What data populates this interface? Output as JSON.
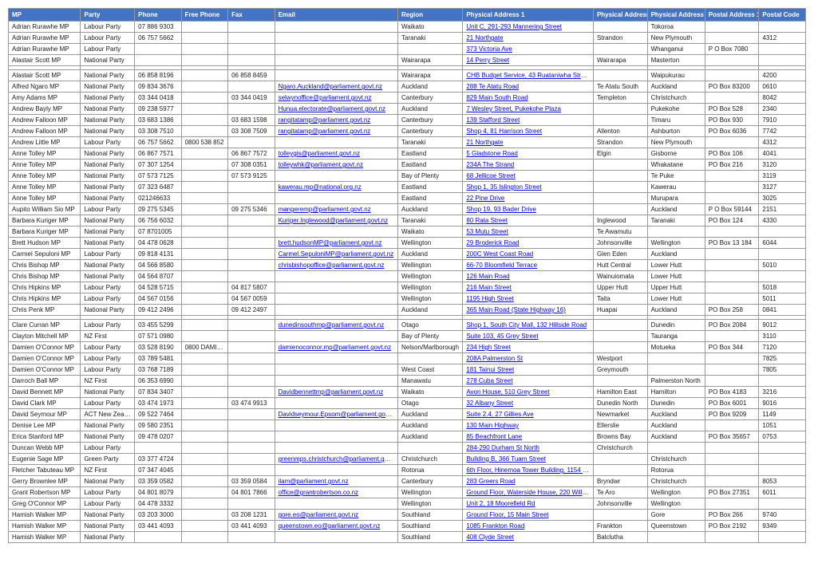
{
  "columns": [
    "MP",
    "Party",
    "Phone",
    "Free Phone",
    "Fax",
    "Email",
    "Region",
    "Physical Address 1",
    "Physical Address 2",
    "Physical Address 3",
    "Postal Address 1",
    "Postal Code"
  ],
  "colClasses": [
    "c0",
    "c1",
    "c2",
    "c3",
    "c4",
    "c5",
    "c6",
    "c7",
    "c8",
    "c9",
    "c10",
    "c11"
  ],
  "rows": [
    [
      "Adrian Rurawhe MP",
      "Labour Party",
      "07 886 9303",
      "",
      "",
      "",
      "Waikato",
      "Unit C, 291-293 Mannering Street",
      "",
      "Tokoroa",
      "",
      ""
    ],
    [
      "Adrian Rurawhe MP",
      "Labour Party",
      "06 757 5662",
      "",
      "",
      "",
      "Taranaki",
      "21 Northgate",
      "Strandon",
      "New Plymouth",
      "",
      "4312"
    ],
    [
      "Adrian Rurawhe MP",
      "Labour Party",
      "",
      "",
      "",
      "",
      "",
      "373 Victoria Ave",
      "",
      "Whanganui",
      "P O Box 7080",
      ""
    ],
    [
      "Alastair Scott MP",
      "National Party",
      "",
      "",
      "",
      "",
      "Wairarapa",
      "14 Perry Street",
      "Wairarapa",
      "Masterton",
      "",
      ""
    ],
    [
      "",
      "",
      "",
      "",
      "",
      "",
      "",
      "",
      "",
      "",
      "",
      ""
    ],
    [
      "Alastair Scott MP",
      "National Party",
      "06 858 8196",
      "",
      "06 858 8459",
      "",
      "Wairarapa",
      "CHB Budget Service, 43 Ruataniwha Street",
      "",
      "Waipukurau",
      "",
      "4200"
    ],
    [
      "Alfred Ngaro MP",
      "National Party",
      "09 834 3676",
      "",
      "",
      "Ngaro.Auckland@parliament.govt.nz",
      "Auckland",
      "288 Te Atatu Road",
      "Te Atatu South",
      "Auckland",
      "PO Box 83200",
      "0610"
    ],
    [
      "Amy Adams MP",
      "National Party",
      "03 344 0418",
      "",
      "03 344 0419",
      "selwynoffice@parliament.govt.nz",
      "Canterbury",
      "829 Main South Road",
      "Templeton",
      "Christchurch",
      "",
      "8042"
    ],
    [
      "Andrew Bayly MP",
      "National Party",
      "09 238 5977",
      "",
      "",
      "Hunua.electorate@parliament.govt.nz",
      "Auckland",
      "7 Wesley Street, Pukekohe Plaza",
      "",
      "Pukekohe",
      "PO Box 528",
      "2340"
    ],
    [
      "Andrew Falloon MP",
      "National Party",
      "03 683 1386",
      "",
      "03 683 1598",
      "rangitatamp@parliament.govt.nz",
      "Canterbury",
      "139 Stafford Street",
      "",
      "Timaru",
      "PO Box 930",
      "7910"
    ],
    [
      "Andrew Falloon MP",
      "National Party",
      "03 308 7510",
      "",
      "03 308 7509",
      "rangitatamp@parliament.govt.nz",
      "Canterbury",
      "Shop 4, 81 Harrison Street",
      "Allenton",
      "Ashburton",
      "PO Box 6036",
      "7742"
    ],
    [
      "Andrew Little MP",
      "Labour Party",
      "06 757 5662",
      "0800 538 852",
      "",
      "",
      "Taranaki",
      "21 Northgate",
      "Strandon",
      "New Plymouth",
      "",
      "4312"
    ],
    [
      "Anne Tolley MP",
      "National Party",
      "06 867 7571",
      "",
      "06 867 7572",
      "tolleygis@parliament.govt.nz",
      "Eastland",
      "5 Gladstone Road",
      "Elgin",
      "Gisborne",
      "PO Box 106",
      "4041"
    ],
    [
      "Anne Tolley MP",
      "National Party",
      "07 307 1254",
      "",
      "07 308 0351",
      "tolleywhk@parliament.govt.nz",
      "Eastland",
      "234A The Strand",
      "",
      "Whakatane",
      "PO Box 216",
      "3120"
    ],
    [
      "Anne Tolley MP",
      "National Party",
      "07 573 7125",
      "",
      "07 573 9125",
      "",
      "Bay of Plenty",
      "68 Jellicoe Street",
      "",
      "Te Puke",
      "",
      "3119"
    ],
    [
      "Anne Tolley MP",
      "National Party",
      "07 323 6487",
      "",
      "",
      "kawerau.mp@national.org.nz",
      "Eastland",
      "Shop 1, 35 Islington Street",
      "",
      "Kawerau",
      "",
      "3127"
    ],
    [
      "Anne Tolley MP",
      "National Party",
      "021246633",
      "",
      "",
      "",
      "Eastland",
      "22 Pine Drive",
      "",
      "Murupara",
      "",
      "3025"
    ],
    [
      "Aupito William Sio MP",
      "Labour Party",
      "09 275 5345",
      "",
      "09 275 5346",
      "mangeremp@parliament.govt.nz",
      "Auckland",
      "Shop 19, 93 Bader Drive",
      "",
      "Auckland",
      "P O Box 59144",
      "2151"
    ],
    [
      "Barbara Kuriger MP",
      "National Party",
      "06 756 6032",
      "",
      "",
      "Kuriger.Inglewood@parliament.govt.nz",
      "Taranaki",
      "80 Rata Street",
      "Inglewood",
      "Taranaki",
      "PO Box 124",
      "4330"
    ],
    [
      "Barbara Kuriger MP",
      "National Party",
      "07 8701005",
      "",
      "",
      "",
      "Waikato",
      "53 Mutu Street",
      "Te Awamutu",
      "",
      "",
      ""
    ],
    [
      "Brett Hudson MP",
      "National Party",
      "04 478 0628",
      "",
      "",
      "brett.hudsonMP@parliament.govt.nz",
      "Wellington",
      "29 Broderick Road",
      "Johnsonville",
      "Wellington",
      "PO Box 13 184",
      "6044"
    ],
    [
      "Carmel Sepuloni MP",
      "Labour Party",
      "09 818 4131",
      "",
      "",
      "Carmel.SepuloniMP@parliament.govt.nz",
      "Auckland",
      "200C West Coast Road",
      "Glen Eden",
      "Auckland",
      "",
      ""
    ],
    [
      "Chris Bishop MP",
      "National Party",
      "04 566 8580",
      "",
      "",
      "chrisbishopoffice@parliament.govt.nz",
      "Wellington",
      "66-70 Bloomfield Terrace",
      "Hutt Central",
      "Lower Hutt",
      "",
      "5010"
    ],
    [
      "Chris Bishop MP",
      "National Party",
      "04 564 8707",
      "",
      "",
      "",
      "Wellington",
      "126 Main Road",
      "Wainuiomata",
      "Lower Hutt",
      "",
      ""
    ],
    [
      "Chris Hipkins MP",
      "Labour Party",
      "04 528 5715",
      "",
      "04 817 5807",
      "",
      "Wellington",
      "216 Main Street",
      "Upper Hutt",
      "Upper Hutt",
      "",
      "5018"
    ],
    [
      "Chris Hipkins MP",
      "Labour Party",
      "04 567 0156",
      "",
      "04 567 0059",
      "",
      "Wellington",
      "1195 High Street",
      "Taita",
      "Lower Hutt",
      "",
      "5011"
    ],
    [
      "Chris Penk MP",
      "National Party",
      "09 412 2496",
      "",
      "09 412 2497",
      "",
      "Auckland",
      "365 Main Road (State Highway 16)",
      "Huapai",
      "Auckland",
      "PO Box 258",
      "0841"
    ],
    [
      "",
      "",
      "",
      "",
      "",
      "",
      "",
      "",
      "",
      "",
      "",
      ""
    ],
    [
      "Clare Curran MP",
      "Labour Party",
      "03 455 5299",
      "",
      "",
      "dunedinsouthmp@parliament.govt.nz",
      "Otago",
      "Shop 1, South City Mall, 132 Hillside Road",
      "",
      "Dunedin",
      "PO Box 2084",
      "9012"
    ],
    [
      "Clayton Mitchell MP",
      "NZ First",
      "07 571 0980",
      "",
      "",
      "",
      "Bay of Plenty",
      "Suite 103, 45 Grey Street",
      "",
      "Tauranga",
      "",
      "3110"
    ],
    [
      "Damien O'Connor MP",
      "Labour Party",
      "03 528 8190",
      "0800 DAMIEN",
      "",
      "damienoconnor.mp@parliament.govt.nz",
      "Nelson/Marlborough",
      "234 High Street",
      "",
      "Motueka",
      "PO Box 344",
      "7120"
    ],
    [
      "Damien O'Connor MP",
      "Labour Party",
      "03 789 5481",
      "",
      "",
      "",
      "",
      "208A Palmerston St",
      "Westport",
      "",
      "",
      "7825"
    ],
    [
      "Damien O'Connor MP",
      "Labour Party",
      "03 768 7189",
      "",
      "",
      "",
      "West Coast",
      "181 Tainui Street",
      "Greymouth",
      "",
      "",
      "7805"
    ],
    [
      "Darroch Ball MP",
      "NZ First",
      "06 353 6990",
      "",
      "",
      "",
      "Manawatu",
      "278 Cuba Street",
      "",
      "Palmerston North",
      "",
      ""
    ],
    [
      "David Bennett MP",
      "National Party",
      "07 834 3407",
      "",
      "",
      "Davidbennettmp@parliament.govt.nz",
      "Waikato",
      "Avon House, 510 Grey Street",
      "Hamilton East",
      "Hamilton",
      "PO Box 4183",
      "3216"
    ],
    [
      "David Clark MP",
      "Labour Party",
      "03 474 1973",
      "",
      "03 474 9913",
      "",
      "Otago",
      "32 Albany Street",
      "Dunedin North",
      "Dunedin",
      "PO Box 6001",
      "9016"
    ],
    [
      "David Seymour MP",
      "ACT New Zealand",
      "09 522 7464",
      "",
      "",
      "Davidseymour.Epsom@parliament.govt.nz",
      "Auckland",
      "Suite 2.4, 27 Gillies Ave",
      "Newmarket",
      "Auckland",
      "PO Box 9209",
      "1149"
    ],
    [
      "Denise Lee MP",
      "National Party",
      "09 580 2351",
      "",
      "",
      "",
      "Auckland",
      "130 Main Highway",
      "Ellerslie",
      "Auckland",
      "",
      "1051"
    ],
    [
      "Erica Stanford MP",
      "National Party",
      "09 478 0207",
      "",
      "",
      "",
      "Auckland",
      "85 Beachfront Lane",
      "Browns Bay",
      "Auckland",
      "PO Box 35657",
      "0753"
    ],
    [
      "Duncan Webb MP",
      "Labour Party",
      "",
      "",
      "",
      "",
      "",
      "284-290 Durham St North",
      "Christchurch",
      "",
      "",
      ""
    ],
    [
      "Eugenie Sage MP",
      "Green Party",
      "03 377 4724",
      "",
      "",
      "greenmps.christchurch@parliament.govt.nz",
      "Christchurch",
      "Building B, 366 Tuam Street",
      "",
      "Christchurch",
      "",
      ""
    ],
    [
      "Fletcher Tabuteau MP",
      "NZ First",
      "07 347 4045",
      "",
      "",
      "",
      "Rotorua",
      "6th Floor, Hinemoa Tower Building, 1154 Hinemoa St",
      "",
      "Rotorua",
      "",
      ""
    ],
    [
      "Gerry Brownlee MP",
      "National Party",
      "03 359 0582",
      "",
      "03 359 0584",
      "ilam@parliament.govt.nz",
      "Canterbury",
      "283 Greers Road",
      "Bryndwr",
      "Christchurch",
      "",
      "8053"
    ],
    [
      "Grant Robertson MP",
      "Labour Party",
      "04 801 8079",
      "",
      "04 801 7866",
      "office@grantrobertson.co.nz",
      "Wellington",
      "Ground Floor, Waterside House, 220 Willis Street",
      "Te Aro",
      "Wellington",
      "PO Box 27351",
      "6011"
    ],
    [
      "Greg O'Connor MP",
      "Labour Party",
      "04 478 3332",
      "",
      "",
      "",
      "Wellington",
      "Unit 2, 18 Moorefield Rd",
      "Johnsonville",
      "Wellington",
      "",
      ""
    ],
    [
      "Hamish Walker MP",
      "National Party",
      "03 203 3000",
      "",
      "03 208 1231",
      "gore.eo@parliament.govt.nz",
      "Southland",
      "Ground Floor, 15 Main Street",
      "",
      "Gore",
      "PO Box 266",
      "9740"
    ],
    [
      "Hamish Walker MP",
      "National Party",
      "03 441 4093",
      "",
      "03 441 4093",
      "queenstown.eo@parliament.govt.nz",
      "Southland",
      "1085 Frankton Road",
      "Frankton",
      "Queenstown",
      "PO Box 2192",
      "9349"
    ],
    [
      "Hamish Walker MP",
      "National Party",
      "",
      "",
      "",
      "",
      "Southland",
      "408 Clyde Street",
      "Balclutha",
      "",
      "",
      ""
    ]
  ],
  "emailLinkCols": [
    5,
    7
  ],
  "theme": {
    "headerBg": "#4472C4",
    "headerFg": "#ffffff",
    "border": "#999999",
    "link": "#0000EE",
    "bodyFont": "Arial",
    "fontSize": 8
  }
}
